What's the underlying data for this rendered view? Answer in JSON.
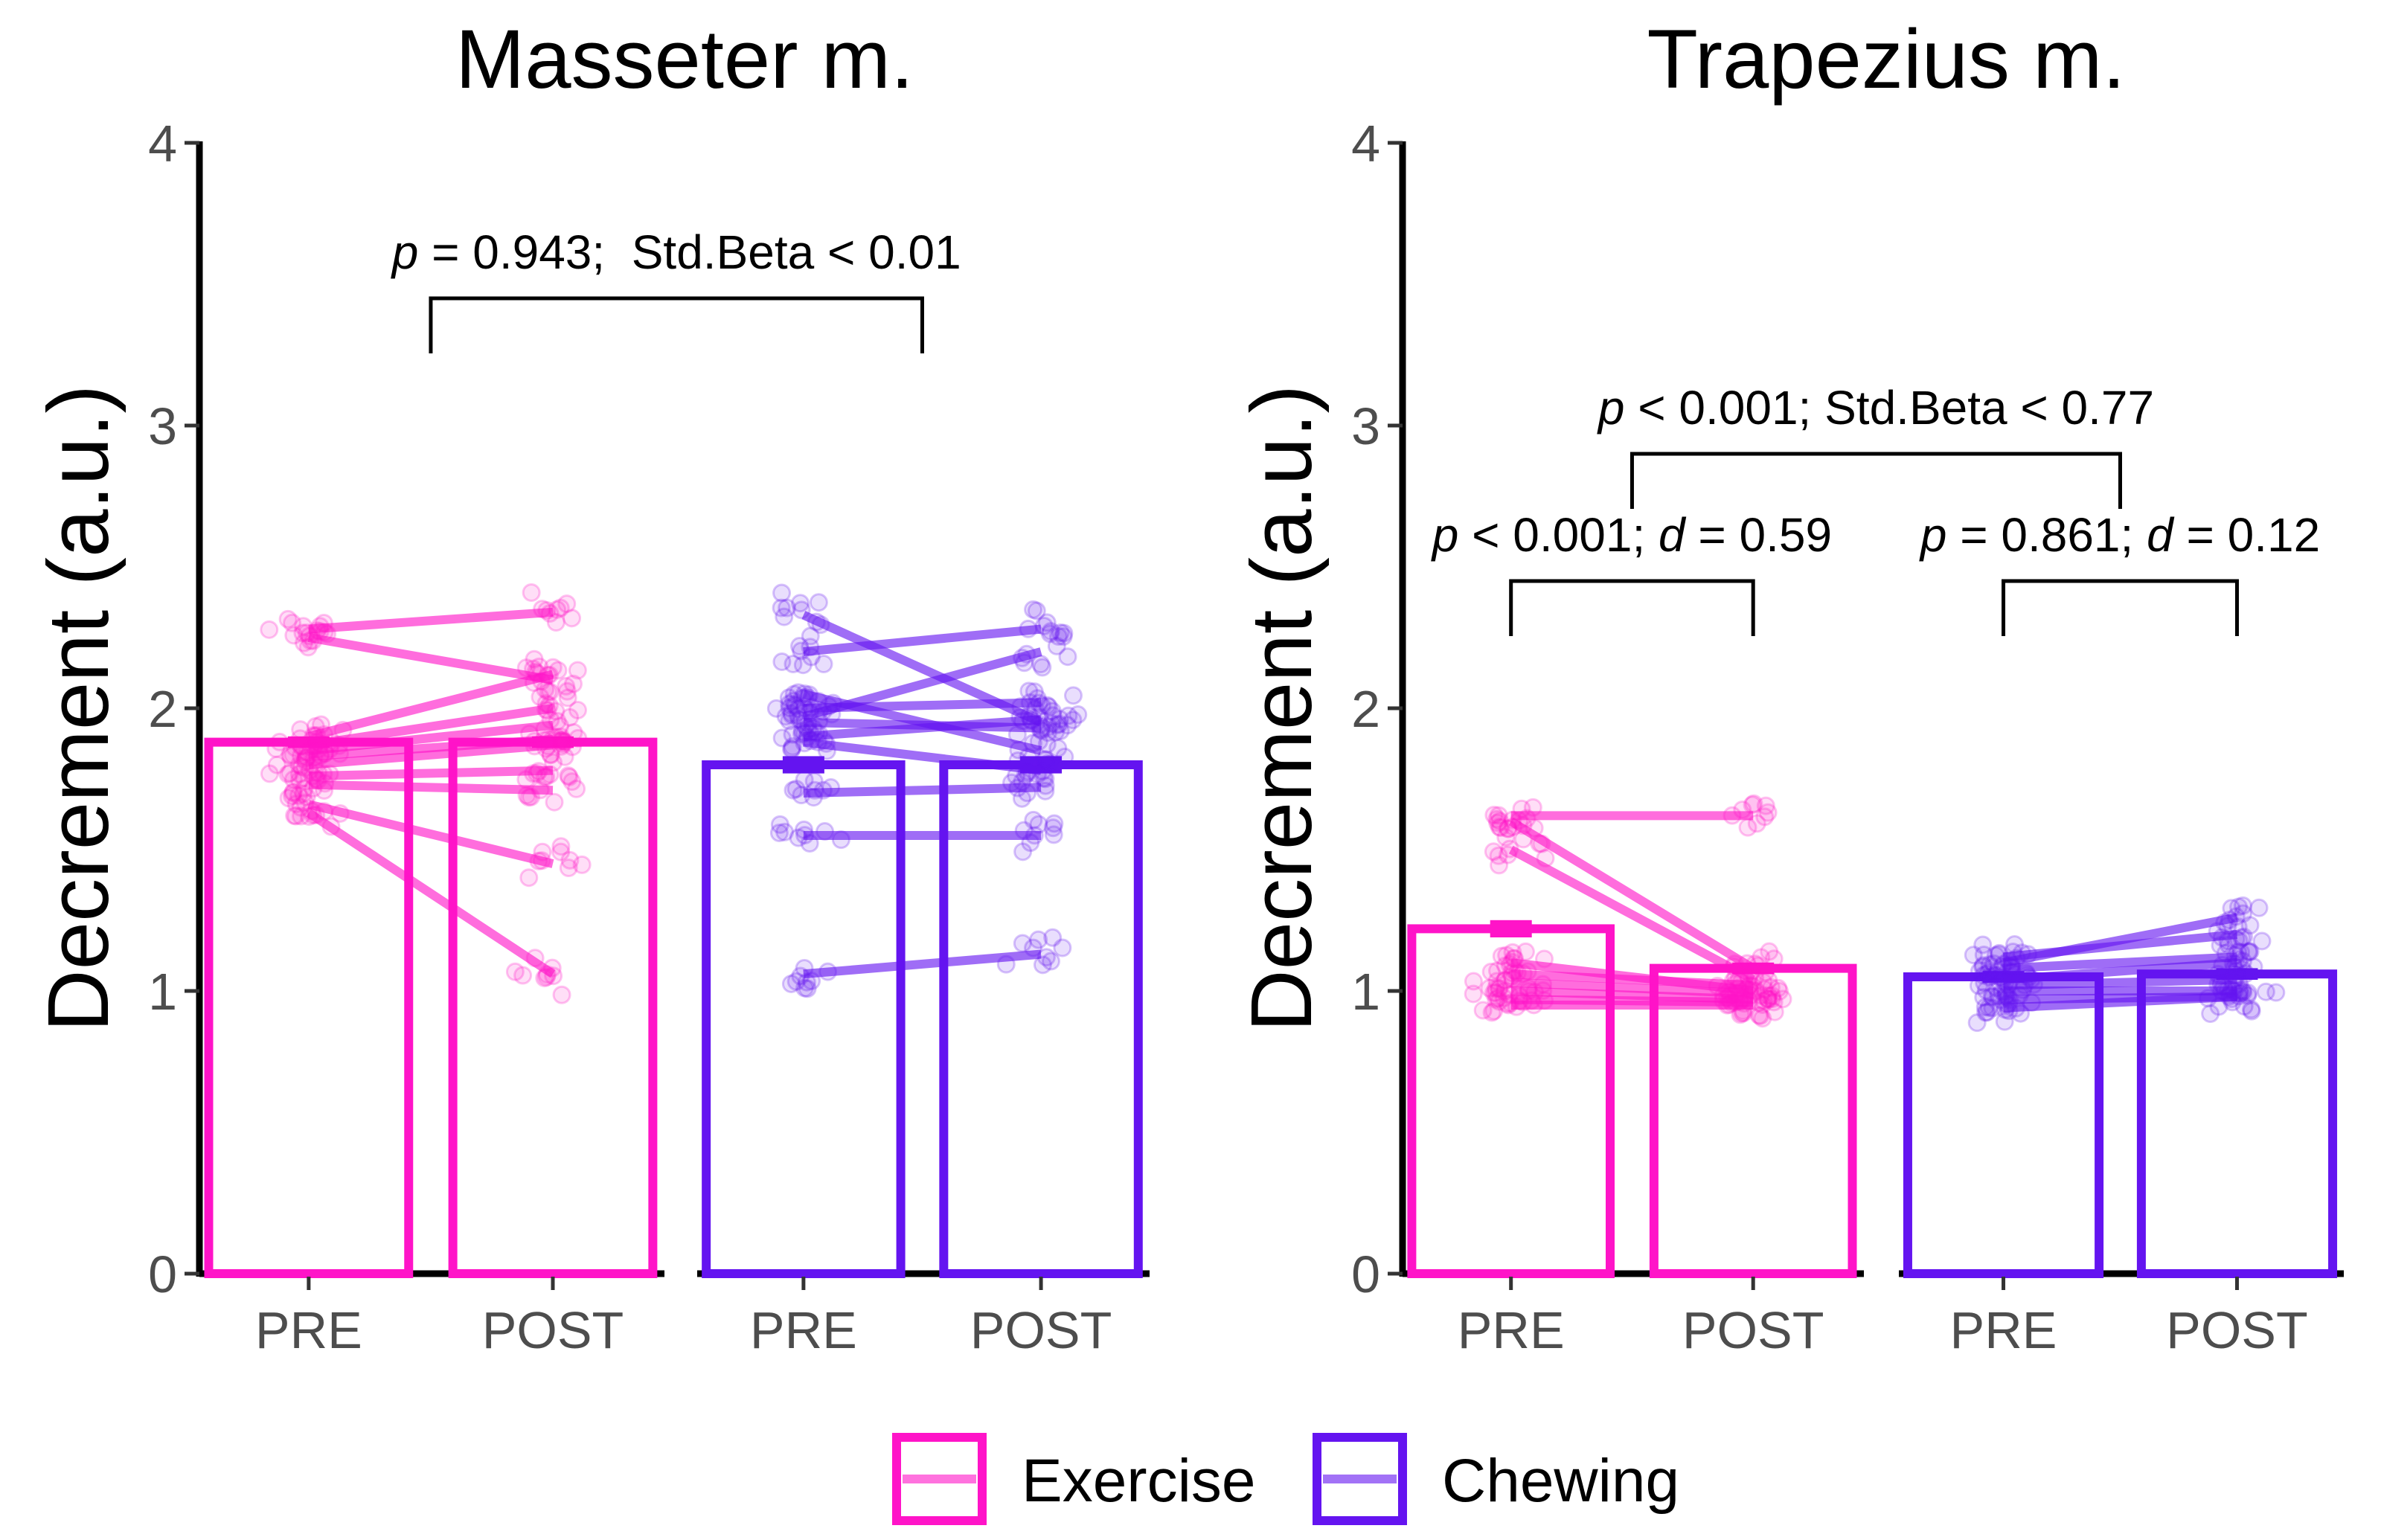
{
  "chart_data": [
    {
      "type": "bar",
      "title": "Masseter m.",
      "xlabel": "",
      "ylabel": "Decrement (a.u.)",
      "ylim": [
        0,
        4
      ],
      "yticks": [
        0,
        1,
        2,
        3,
        4
      ],
      "grid": false,
      "facets": [
        "Exercise",
        "Chewing"
      ],
      "categories": [
        "PRE",
        "POST"
      ],
      "series": [
        {
          "name": "Exercise",
          "color": "#ff14c8",
          "values": [
            1.88,
            1.88
          ],
          "error": [
            0.01,
            0.01
          ],
          "subject_lines": [
            [
              2.28,
              2.34
            ],
            [
              2.25,
              2.1
            ],
            [
              1.9,
              2.12
            ],
            [
              1.87,
              2.0
            ],
            [
              1.85,
              1.94
            ],
            [
              1.83,
              1.89
            ],
            [
              1.8,
              1.87
            ],
            [
              1.76,
              1.78
            ],
            [
              1.73,
              1.71
            ],
            [
              1.66,
              1.45
            ],
            [
              1.63,
              1.06
            ]
          ]
        },
        {
          "name": "Chewing",
          "color": "#6414f0",
          "values": [
            1.8,
            1.8
          ],
          "error": [
            0.02,
            0.02
          ],
          "subject_lines": [
            [
              2.33,
              1.95
            ],
            [
              2.2,
              2.28
            ],
            [
              2.05,
              1.85
            ],
            [
              2.0,
              2.02
            ],
            [
              1.97,
              2.2
            ],
            [
              1.95,
              1.93
            ],
            [
              1.9,
              1.96
            ],
            [
              1.88,
              1.78
            ],
            [
              1.7,
              1.72
            ],
            [
              1.55,
              1.55
            ],
            [
              1.06,
              1.13
            ]
          ]
        }
      ],
      "annotations": [
        {
          "p_label": "p",
          "text": " = 0.943;  Std.Beta < 0.01",
          "from": "Exercise",
          "to": "Chewing",
          "y": 3.45
        }
      ]
    },
    {
      "type": "bar",
      "title": "Trapezius m.",
      "xlabel": "",
      "ylabel": "Decrement (a.u.)",
      "ylim": [
        0,
        4
      ],
      "yticks": [
        0,
        1,
        2,
        3,
        4
      ],
      "grid": false,
      "facets": [
        "Exercise",
        "Chewing"
      ],
      "categories": [
        "PRE",
        "POST"
      ],
      "series": [
        {
          "name": "Exercise",
          "color": "#ff14c8",
          "values": [
            1.22,
            1.08
          ],
          "error": [
            0.02,
            0.01
          ],
          "subject_lines": [
            [
              1.62,
              1.62
            ],
            [
              1.6,
              1.08
            ],
            [
              1.5,
              1.04
            ],
            [
              1.1,
              1.0
            ],
            [
              1.06,
              1.02
            ],
            [
              1.03,
              0.99
            ],
            [
              1.0,
              0.97
            ],
            [
              0.97,
              0.96
            ],
            [
              0.95,
              0.95
            ]
          ]
        },
        {
          "name": "Chewing",
          "color": "#6414f0",
          "values": [
            1.05,
            1.06
          ],
          "error": [
            0.01,
            0.01
          ],
          "subject_lines": [
            [
              1.1,
              1.26
            ],
            [
              1.12,
              1.2
            ],
            [
              1.08,
              1.12
            ],
            [
              1.04,
              1.1
            ],
            [
              1.02,
              1.04
            ],
            [
              1.0,
              1.0
            ],
            [
              0.97,
              0.98
            ],
            [
              0.94,
              0.98
            ]
          ]
        }
      ],
      "annotations": [
        {
          "p_label": "p",
          "text": " < 0.001; Std.Beta < 0.77",
          "from": "Exercise",
          "to": "Chewing",
          "y": 2.9
        },
        {
          "p_label": "p",
          "text": " < 0.001; ",
          "d_label": "d",
          "d_text": " = 0.59",
          "within": "Exercise",
          "y": 2.45
        },
        {
          "p_label": "p",
          "text": " = 0.861; ",
          "d_label": "d",
          "d_text": " = 0.12",
          "within": "Chewing",
          "y": 2.45
        }
      ]
    }
  ],
  "legend": {
    "position": "bottom",
    "items": [
      {
        "label": "Exercise",
        "color": "#ff14c8"
      },
      {
        "label": "Chewing",
        "color": "#6414f0"
      }
    ]
  }
}
